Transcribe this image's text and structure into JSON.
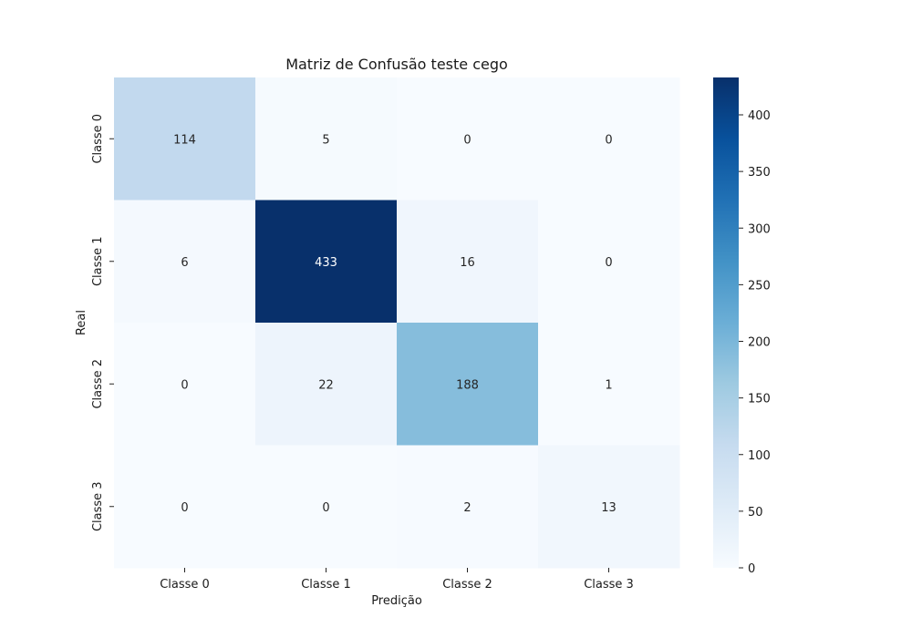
{
  "chart_data": {
    "type": "heatmap",
    "title": "Matriz de Confusão teste cego",
    "xlabel": "Predição",
    "ylabel": "Real",
    "x_categories": [
      "Classe 0",
      "Classe 1",
      "Classe 2",
      "Classe 3"
    ],
    "y_categories": [
      "Classe 0",
      "Classe 1",
      "Classe 2",
      "Classe 3"
    ],
    "values": [
      [
        114,
        5,
        0,
        0
      ],
      [
        6,
        433,
        16,
        0
      ],
      [
        0,
        22,
        188,
        1
      ],
      [
        0,
        0,
        2,
        13
      ]
    ],
    "colorbar": {
      "min": 0,
      "max": 433,
      "ticks": [
        0,
        50,
        100,
        150,
        200,
        250,
        300,
        350,
        400
      ],
      "colormap": "Blues"
    },
    "grid": false
  }
}
